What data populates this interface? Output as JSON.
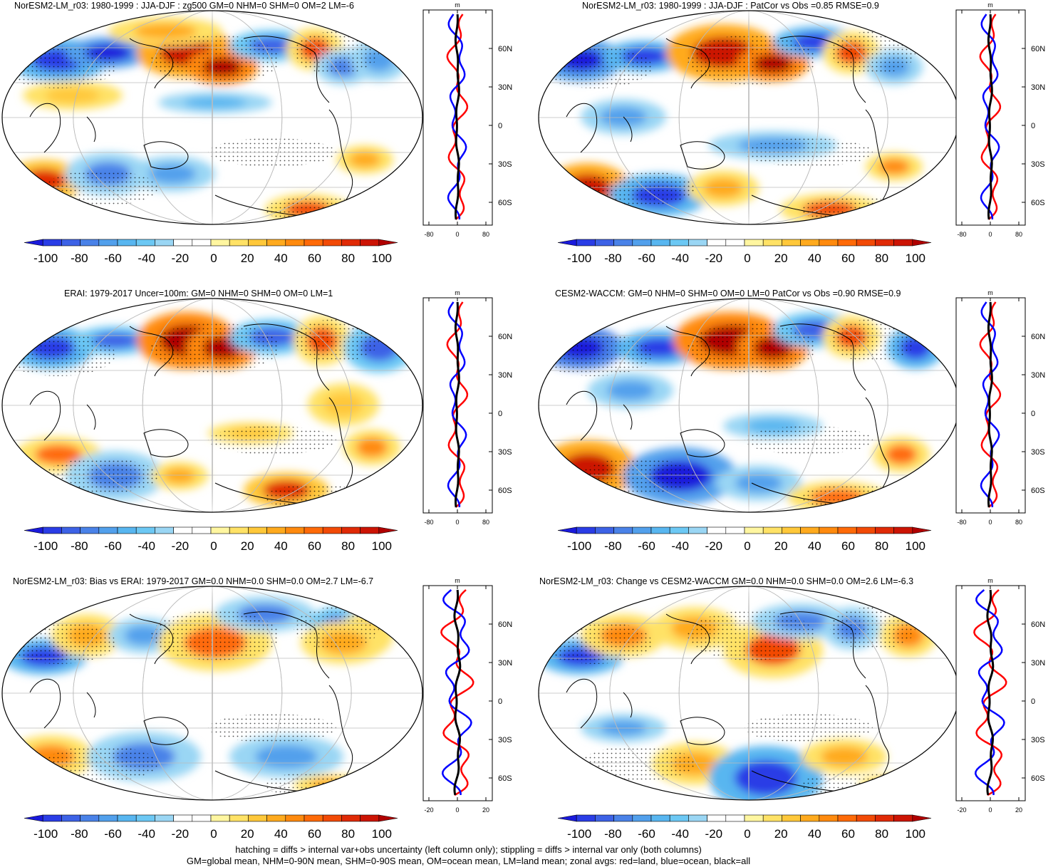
{
  "panels": [
    {
      "id": "p1",
      "title": "NorESM2-LM_r03: 1980-1999 : JJA-DJF : zg500 GM=0 NHM=0 SHM=0 OM=2 LM=-6",
      "zonal_unit": "m",
      "zonal_xticks": [
        "-80",
        "0",
        "80"
      ],
      "zonal_ylabels": [
        "60N",
        "30N",
        "0",
        "30S",
        "60S"
      ],
      "colorbar_labels": [
        "-100",
        "-80",
        "-60",
        "-40",
        "-20",
        "0",
        "20",
        "40",
        "60",
        "80",
        "100"
      ]
    },
    {
      "id": "p2",
      "title": "NorESM2-LM_r03: 1980-1999 : JJA-DJF : PatCor vs Obs =0.85 RMSE=0.9",
      "zonal_unit": "m",
      "zonal_xticks": [
        "-80",
        "0",
        "80"
      ],
      "zonal_ylabels": [
        "60N",
        "30N",
        "0",
        "30S",
        "60S"
      ],
      "colorbar_labels": [
        "-100",
        "-80",
        "-60",
        "-40",
        "-20",
        "0",
        "20",
        "40",
        "60",
        "80",
        "100"
      ]
    },
    {
      "id": "p3",
      "title": "ERAI: 1979-2017 Uncer=100m: GM=0 NHM=0 SHM=0 OM=0 LM=1",
      "zonal_unit": "m",
      "zonal_xticks": [
        "-80",
        "0",
        "80"
      ],
      "zonal_ylabels": [
        "60N",
        "30N",
        "0",
        "30S",
        "60S"
      ],
      "colorbar_labels": [
        "-100",
        "-80",
        "-60",
        "-40",
        "-20",
        "0",
        "20",
        "40",
        "60",
        "80",
        "100"
      ]
    },
    {
      "id": "p4",
      "title": "CESM2-WACCM: GM=0 NHM=0 SHM=0 OM=0 LM=0 PatCor vs Obs =0.90 RMSE=0.9",
      "zonal_unit": "m",
      "zonal_xticks": [
        "-80",
        "0",
        "80"
      ],
      "zonal_ylabels": [
        "60N",
        "30N",
        "0",
        "30S",
        "60S"
      ],
      "colorbar_labels": [
        "-100",
        "-80",
        "-60",
        "-40",
        "-20",
        "0",
        "20",
        "40",
        "60",
        "80",
        "100"
      ]
    },
    {
      "id": "p5",
      "title": "NorESM2-LM_r03: Bias vs ERAI: 1979-2017 GM=0.0 NHM=0.0 SHM=0.0 OM=2.7 LM=-6.7",
      "zonal_unit": "m",
      "zonal_xticks": [
        "-20",
        "0",
        "20"
      ],
      "zonal_ylabels": [
        "60N",
        "30N",
        "0",
        "30S",
        "60S"
      ],
      "colorbar_labels": [
        "-100",
        "-80",
        "-60",
        "-40",
        "-20",
        "0",
        "20",
        "40",
        "60",
        "80",
        "100"
      ]
    },
    {
      "id": "p6",
      "title": "NorESM2-LM_r03: Change vs CESM2-WACCM GM=0.0 NHM=0.0 SHM=0.0 OM=2.6 LM=-6.3",
      "zonal_unit": "m",
      "zonal_xticks": [
        "-20",
        "0",
        "20"
      ],
      "zonal_ylabels": [
        "60N",
        "30N",
        "0",
        "30S",
        "60S"
      ],
      "colorbar_labels": [
        "-100",
        "-80",
        "-60",
        "-40",
        "-20",
        "0",
        "20",
        "40",
        "60",
        "80",
        "100"
      ]
    }
  ],
  "colors": {
    "colorbar": [
      "#1a1adc",
      "#2a3de6",
      "#3d62e6",
      "#4a82e8",
      "#52a0ec",
      "#58b6f0",
      "#6cc8f4",
      "#9ad6f4",
      "#ffffff",
      "#ffffff",
      "#fff6a0",
      "#ffe266",
      "#ffc83a",
      "#ffaa1e",
      "#ff8a0e",
      "#ff6a08",
      "#f24a06",
      "#e02a06",
      "#cc1404",
      "#b00000"
    ],
    "land_line": "#000000",
    "zonal_red": "#ff0000",
    "zonal_blue": "#0000ff",
    "zonal_black": "#000000"
  },
  "caption": {
    "line1": "hatching = diffs > internal var+obs uncertainty (left column only); stippling = diffs > internal var only (both columns)",
    "line2": "GM=global mean, NHM=0-90N mean, SHM=0-90S mean, OM=ocean mean, LM=land mean; zonal avgs: red=land, blue=ocean, black=all"
  }
}
